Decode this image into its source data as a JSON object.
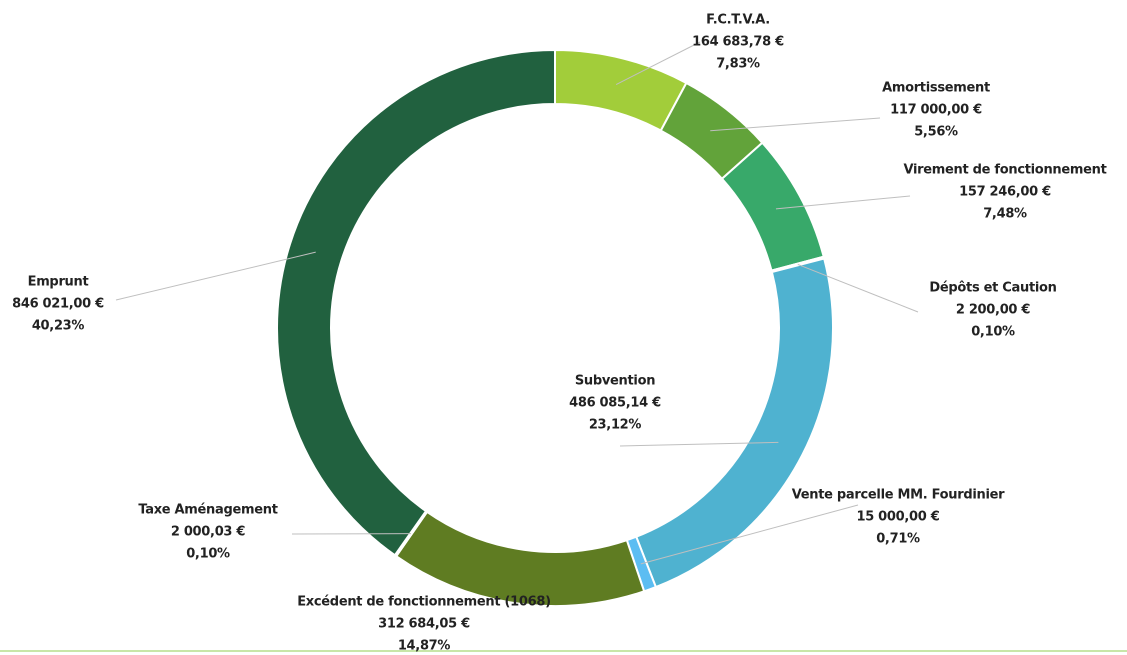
{
  "chart_data": {
    "type": "donut",
    "categories": [
      "F.C.T.V.A.",
      "Amortissement",
      "Virement de fonctionnement",
      "Dépôts et Caution",
      "Subvention",
      "Vente parcelle MM. Fourdinier",
      "Excédent de fonctionnement (1068)",
      "Taxe Aménagement",
      "Emprunt"
    ],
    "values": [
      164683.78,
      117000.0,
      157246.0,
      2200.0,
      486085.14,
      15000.0,
      312684.05,
      2000.03,
      846021.0
    ],
    "value_labels": [
      "164 683,78 €",
      "117 000,00 €",
      "157 246,00 €",
      "2 200,00 €",
      "486 085,14 €",
      "15 000,00 €",
      "312 684,05 €",
      "2 000,03 €",
      "846 021,00 €"
    ],
    "percentages": [
      7.83,
      5.56,
      7.48,
      0.1,
      23.12,
      0.71,
      14.87,
      0.1,
      40.23
    ],
    "percent_labels": [
      "7,83%",
      "5,56%",
      "7,48%",
      "0,10%",
      "23,12%",
      "0,71%",
      "14,87%",
      "0,10%",
      "40,23%"
    ],
    "colors": [
      "#a2cd3a",
      "#62a33a",
      "#38a96a",
      "#a8e0e8",
      "#4fb2d0",
      "#5cbdf2",
      "#5f7c22",
      "#8fae4a",
      "#21613f"
    ]
  }
}
